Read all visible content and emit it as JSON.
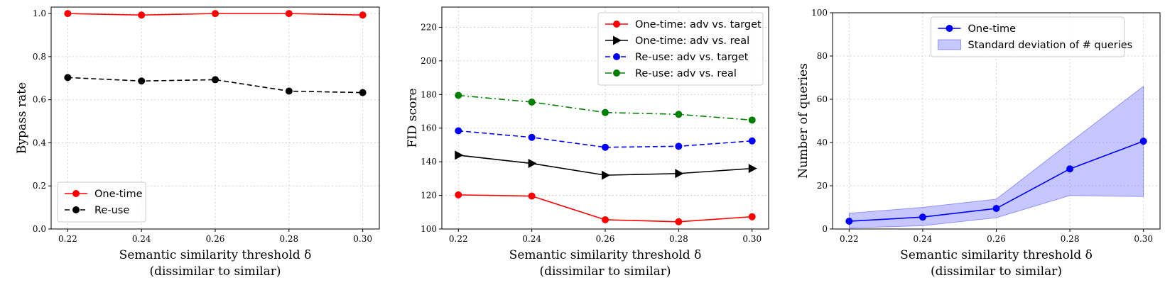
{
  "chart_data": [
    {
      "type": "line",
      "x": [
        0.22,
        0.24,
        0.26,
        0.28,
        0.3
      ],
      "x_tick_labels": [
        "0.22",
        "0.24",
        "0.26",
        "0.28",
        "0.30"
      ],
      "xlim": [
        0.2155,
        0.3045
      ],
      "ylim": [
        0.0,
        1.03
      ],
      "y_ticks": [
        0.0,
        0.2,
        0.4,
        0.6,
        0.8,
        1.0
      ],
      "y_tick_labels": [
        "0.0",
        "0.2",
        "0.4",
        "0.6",
        "0.8",
        "1.0"
      ],
      "xlabel": "Semantic similarity threshold δ",
      "xlabel_line2": "(dissimilar to similar)",
      "ylabel": "Bypass rate",
      "grid": true,
      "legend_position": "lower-left",
      "series": [
        {
          "name": "One-time",
          "values": [
            1.0,
            0.993,
            1.0,
            1.0,
            0.993
          ],
          "color": "#ff0000",
          "linestyle": "solid",
          "marker": "circle"
        },
        {
          "name": "Re-use",
          "values": [
            0.703,
            0.687,
            0.693,
            0.64,
            0.633
          ],
          "color": "#000000",
          "linestyle": "dashed",
          "marker": "circle"
        }
      ]
    },
    {
      "type": "line",
      "x": [
        0.22,
        0.24,
        0.26,
        0.28,
        0.3
      ],
      "x_tick_labels": [
        "0.22",
        "0.24",
        "0.26",
        "0.28",
        "0.30"
      ],
      "xlim": [
        0.2155,
        0.3045
      ],
      "ylim": [
        100,
        232
      ],
      "y_ticks": [
        100,
        120,
        140,
        160,
        180,
        200,
        220
      ],
      "y_tick_labels": [
        "100",
        "120",
        "140",
        "160",
        "180",
        "200",
        "220"
      ],
      "xlabel": "Semantic similarity threshold δ",
      "xlabel_line2": "(dissimilar to similar)",
      "ylabel": "FID score",
      "grid": true,
      "legend_position": "upper-right",
      "series": [
        {
          "name": "One-time: adv vs. target",
          "values": [
            120.3,
            119.6,
            105.5,
            104.3,
            107.3
          ],
          "color": "#ff0000",
          "linestyle": "solid",
          "marker": "circle"
        },
        {
          "name": "One-time: adv vs. real",
          "values": [
            143.9,
            139.0,
            132.0,
            133.0,
            136.0
          ],
          "color": "#000000",
          "linestyle": "solid",
          "marker": "triangle-right"
        },
        {
          "name": "Re-use: adv vs. target",
          "values": [
            158.4,
            154.5,
            148.6,
            149.2,
            152.4
          ],
          "color": "#0000ff",
          "linestyle": "dashed",
          "marker": "circle"
        },
        {
          "name": "Re-use: adv vs. real",
          "values": [
            179.5,
            175.5,
            169.3,
            168.2,
            164.8
          ],
          "color": "#008000",
          "linestyle": "dashdot",
          "marker": "circle"
        }
      ]
    },
    {
      "type": "line",
      "x": [
        0.22,
        0.24,
        0.26,
        0.28,
        0.3
      ],
      "x_tick_labels": [
        "0.22",
        "0.24",
        "0.26",
        "0.28",
        "0.30"
      ],
      "xlim": [
        0.2155,
        0.3045
      ],
      "ylim": [
        0,
        100
      ],
      "y_ticks": [
        0,
        20,
        40,
        60,
        80,
        100
      ],
      "y_tick_labels": [
        "0",
        "20",
        "40",
        "60",
        "80",
        "100"
      ],
      "xlabel": "Semantic similarity threshold δ",
      "xlabel_line2": "(dissimilar to similar)",
      "ylabel": "Number of queries",
      "grid": true,
      "legend_position": "upper-center",
      "series": [
        {
          "name": "One-time",
          "values": [
            3.6,
            5.5,
            9.5,
            27.8,
            40.6
          ],
          "color": "#0000ff",
          "linestyle": "solid",
          "marker": "circle"
        }
      ],
      "band": {
        "name": "Standard deviation of # queries",
        "lower": [
          0.5,
          1.5,
          5.2,
          15.5,
          15.0
        ],
        "upper": [
          7.3,
          10.0,
          13.8,
          40.0,
          66.0
        ],
        "color": "#0000ff",
        "opacity": 0.22
      }
    }
  ]
}
